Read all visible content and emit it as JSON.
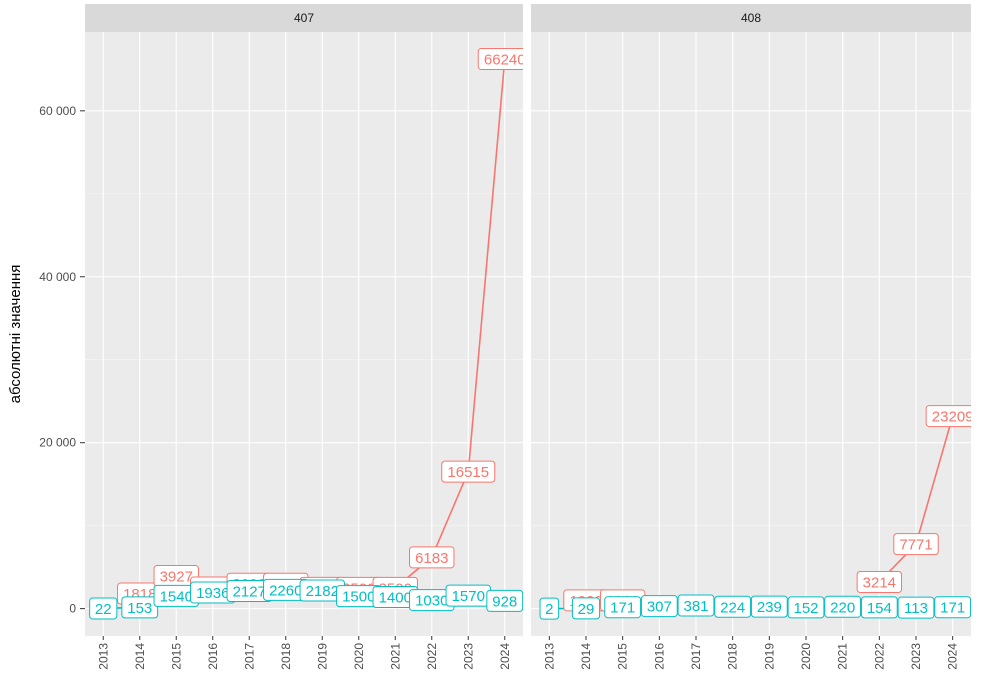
{
  "chart_data": {
    "type": "line",
    "ylabel": "абсолютні значення",
    "xlabel": "",
    "x": [
      "2013",
      "2014",
      "2015",
      "2016",
      "2017",
      "2018",
      "2019",
      "2020",
      "2021",
      "2022",
      "2023",
      "2024"
    ],
    "ylim": [
      -3300,
      69500
    ],
    "yticks": [
      0,
      20000,
      40000,
      60000
    ],
    "ytick_labels": [
      "0",
      "20 000",
      "40 000",
      "60 000"
    ],
    "grid": true,
    "legend": "none",
    "panels": [
      {
        "name": "407",
        "series": [
          {
            "color": "#F8766D",
            "labels": [
              null,
              "1818",
              "3927",
              "2550",
              "3000",
              "3000",
              "2500",
              "2500",
              "2500",
              "6183",
              "16515",
              "66240"
            ],
            "values": [
              null,
              1818,
              3927,
              2550,
              3000,
              3000,
              2500,
              2500,
              2500,
              6183,
              16515,
              66240
            ]
          },
          {
            "color": "#00BFC4",
            "labels": [
              "22",
              "153",
              "1540",
              "1936",
              "2127",
              "2260",
              "2182",
              "1500",
              "1400",
              "1030",
              "1570",
              "928"
            ],
            "values": [
              22,
              153,
              1540,
              1936,
              2127,
              2260,
              2182,
              1500,
              1400,
              1030,
              1570,
              928
            ]
          }
        ]
      },
      {
        "name": "408",
        "series": [
          {
            "color": "#F8766D",
            "labels": [
              null,
              "1000",
              "1000",
              null,
              null,
              null,
              null,
              null,
              null,
              "3214",
              "7771",
              "23209"
            ],
            "values": [
              null,
              1000,
              1000,
              null,
              null,
              null,
              null,
              null,
              null,
              3214,
              7771,
              23209
            ]
          },
          {
            "color": "#00BFC4",
            "labels": [
              "2",
              "29",
              "171",
              "307",
              "381",
              "224",
              "239",
              "152",
              "220",
              "154",
              "113",
              "171"
            ],
            "values": [
              2,
              29,
              171,
              307,
              381,
              224,
              239,
              152,
              220,
              154,
              113,
              171
            ]
          }
        ]
      }
    ]
  }
}
